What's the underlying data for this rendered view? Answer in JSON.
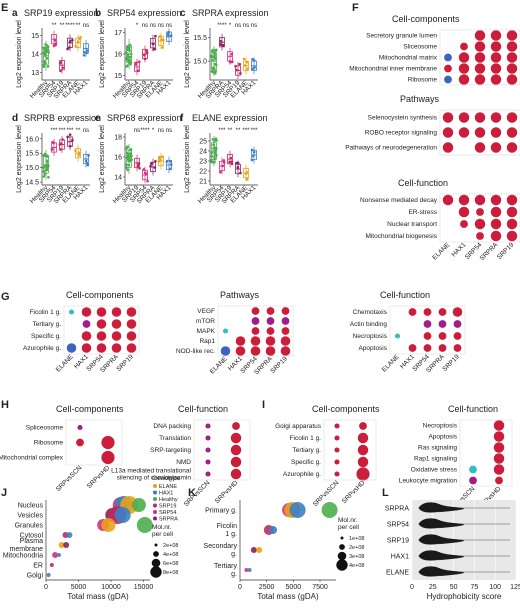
{
  "colors": {
    "Healthy": "#4cae4c",
    "SRP54": "#d62f7a",
    "SRP19": "#c0285f",
    "SRPRA": "#8e1e5f",
    "ELANE": "#e8a317",
    "HAX1": "#3b7fc4",
    "SRPRB": "#b04aa0",
    "dot": "#cc1e3a",
    "dot_alt": "#a31c8c",
    "cyan": "#2fc0c0",
    "blue": "#3b63c4",
    "violin": "#1a1a1a"
  },
  "chart_data": [
    {
      "panel": "E",
      "type": "box",
      "title": "",
      "subpanels": [
        {
          "letter": "a",
          "title": "SRP19 expression",
          "ylabel": "Log2 expression level",
          "ylim": [
            12.6,
            15.4
          ],
          "ticks": [
            "13",
            "14",
            "15"
          ],
          "tick_values": [
            13,
            14,
            15
          ],
          "categories": [
            "Healthy",
            "SRP54",
            "SRP19",
            "SRPRA",
            "ELANE",
            "HAX1"
          ],
          "medians": [
            13.9,
            14.8,
            13.4,
            14.6,
            14.6,
            14.3
          ],
          "sig": [
            "",
            "**",
            "**",
            "****",
            "**",
            "ns"
          ]
        },
        {
          "letter": "b",
          "title": "SRP54 expression",
          "ylabel": "Log2 expression level",
          "ylim": [
            14.8,
            17.2
          ],
          "ticks": [
            "15",
            "16",
            "17"
          ],
          "tick_values": [
            15,
            16,
            17
          ],
          "categories": [
            "Healthy",
            "SRP54",
            "SRP19",
            "SRPRA",
            "ELANE",
            "HAX1"
          ],
          "medians": [
            16.0,
            15.4,
            16.0,
            16.5,
            16.6,
            16.8
          ],
          "sig": [
            "",
            "*",
            "ns",
            "ns",
            "ns",
            "ns"
          ]
        },
        {
          "letter": "c",
          "title": "SRPRA expression",
          "ylabel": "Log2 expression level",
          "ylim": [
            14.6,
            15.7
          ],
          "ticks": [
            "15.0",
            "15.5"
          ],
          "tick_values": [
            15.0,
            15.5
          ],
          "categories": [
            "Healthy",
            "SRPRA",
            "SRP54",
            "SRP19",
            "ELANE",
            "HAX1"
          ],
          "medians": [
            15.0,
            15.4,
            15.1,
            14.8,
            14.9,
            14.9
          ],
          "sig": [
            "",
            "****",
            "*",
            "ns",
            "ns",
            "ns"
          ]
        },
        {
          "letter": "d",
          "title": "SRPRB expression",
          "ylabel": "Log2 expression level",
          "ylim": [
            14.4,
            16.2
          ],
          "ticks": [
            "14.5",
            "15.0",
            "15.5",
            "16.0"
          ],
          "tick_values": [
            14.5,
            15.0,
            15.5,
            16.0
          ],
          "categories": [
            "Healthy",
            "SRP54",
            "SRP19",
            "SRPRA",
            "ELANE",
            "HAX1"
          ],
          "medians": [
            15.1,
            15.7,
            15.8,
            15.9,
            15.5,
            15.3
          ],
          "sig": [
            "",
            "***",
            "***",
            "***",
            "**",
            "ns"
          ]
        },
        {
          "letter": "e",
          "title": "SRP68 expression",
          "ylabel": "Log2 expression level",
          "ylim": [
            13.2,
            18.4
          ],
          "ticks": [
            "14",
            "16",
            "18"
          ],
          "tick_values": [
            14,
            16,
            18
          ],
          "categories": [
            "Healthy",
            "SRP19",
            "SRP54",
            "SRPRA",
            "ELANE",
            "HAX1"
          ],
          "medians": [
            15.8,
            15.4,
            14.2,
            15.0,
            15.6,
            15.2
          ],
          "sig": [
            "",
            "ns",
            "****",
            "*",
            "ns",
            "ns"
          ]
        },
        {
          "letter": "f",
          "title": "ELANE expression",
          "ylabel": "Log2 expression level",
          "ylim": [
            20.6,
            25.8
          ],
          "ticks": [
            "21",
            "22",
            "23",
            "24",
            "25"
          ],
          "tick_values": [
            21,
            22,
            23,
            24,
            25
          ],
          "categories": [
            "Healthy",
            "SRP54",
            "SRP19",
            "SRPRA",
            "ELANE",
            "HAX1"
          ],
          "medians": [
            24.0,
            22.5,
            23.2,
            22.2,
            21.8,
            23.6
          ],
          "sig": [
            "",
            "***",
            "**",
            "**",
            "***",
            "***"
          ]
        }
      ]
    },
    {
      "panel": "F",
      "type": "dotplot",
      "xlabels": [
        "ELANE",
        "HAX1",
        "SRP54",
        "SRPRA",
        "SRP19"
      ],
      "groups": [
        {
          "title": "Cell-components",
          "rows": [
            "Secretory granule lumen",
            "Sliceosome",
            "Mitochondrial matrix",
            "Mitochondrial inner membrane",
            "Ribosome"
          ],
          "sizes": [
            [
              0,
              0,
              3,
              3,
              3
            ],
            [
              0,
              2,
              3,
              3,
              3
            ],
            [
              2,
              3,
              3,
              3,
              3
            ],
            [
              2,
              3,
              3,
              3,
              3
            ],
            [
              2,
              3,
              3,
              3,
              3
            ]
          ]
        },
        {
          "title": "Pathways",
          "rows": [
            "Selenocystein synthesis",
            "ROBO receptor signaling",
            "Pathways of neurodegeneration"
          ],
          "sizes": [
            [
              3,
              3,
              3,
              3,
              3
            ],
            [
              3,
              3,
              3,
              3,
              3
            ],
            [
              3,
              0,
              3,
              3,
              3
            ]
          ]
        },
        {
          "title": "Cell-function",
          "rows": [
            "Nonsense mediated decay",
            "ER-stress",
            "Nuclear transport",
            "Mitochondrial biogenesis"
          ],
          "sizes": [
            [
              3,
              3,
              3,
              3,
              3
            ],
            [
              0,
              3,
              2,
              3,
              3
            ],
            [
              0,
              2,
              3,
              3,
              3
            ],
            [
              0,
              0,
              2,
              3,
              3
            ]
          ]
        }
      ]
    },
    {
      "panel": "G",
      "type": "dotplot",
      "xlabels": [
        "ELANE",
        "HAX1",
        "SRP54",
        "SRPRA",
        "SRP19"
      ],
      "groups": [
        {
          "title": "Cell-components",
          "rows": [
            "Ficolin 1 g.",
            "Tertiary g.",
            "Specific g.",
            "Azurophile g."
          ],
          "sizes": [
            [
              1,
              3,
              3,
              3,
              3
            ],
            [
              0,
              2,
              3,
              3,
              3
            ],
            [
              0,
              3,
              3,
              3,
              3
            ],
            [
              3,
              3,
              3,
              3,
              3
            ]
          ]
        },
        {
          "title": "Pathways",
          "rows": [
            "VEGF",
            "mTOR",
            "MAPK",
            "Rap1",
            "NOD-like rec."
          ],
          "sizes": [
            [
              0,
              0,
              2,
              2,
              2
            ],
            [
              0,
              0,
              2,
              2,
              2
            ],
            [
              1,
              0,
              2,
              2,
              2
            ],
            [
              0,
              3,
              3,
              3,
              3
            ],
            [
              3,
              3,
              3,
              3,
              3
            ]
          ]
        },
        {
          "title": "Cell-function",
          "rows": [
            "Chemotaxis",
            "Actin binding",
            "Necroptosis",
            "Apoptosis"
          ],
          "sizes": [
            [
              0,
              2,
              2,
              2,
              3
            ],
            [
              0,
              0,
              2,
              2,
              2
            ],
            [
              1,
              0,
              2,
              2,
              2
            ],
            [
              0,
              2,
              2,
              2,
              2
            ]
          ]
        }
      ]
    },
    {
      "panel": "H",
      "type": "dotplot",
      "xlabels": [
        "SRPvsSCN",
        "SRPvsHD"
      ],
      "groups": [
        {
          "title": "Cell-components",
          "rows": [
            "Spliceosome",
            "Ribosome",
            "Mitochondrial complex"
          ],
          "sizes": [
            [
              1,
              0
            ],
            [
              2,
              4
            ],
            [
              0,
              4
            ]
          ]
        },
        {
          "title": "Cell-function",
          "rows": [
            "DNA packing",
            "Translation",
            "SRP-targeting",
            "NMD",
            "L13a mediated translational silencing of ceruloplasmin"
          ],
          "sizes": [
            [
              1,
              2
            ],
            [
              1,
              3
            ],
            [
              1,
              3
            ],
            [
              1,
              3
            ],
            [
              1,
              3
            ]
          ]
        }
      ]
    },
    {
      "panel": "I",
      "type": "dotplot",
      "xlabels": [
        "SRPvsSCN",
        "SRPvsHD"
      ],
      "groups": [
        {
          "title": "Cell-components",
          "rows": [
            "Golgi apparatus",
            "Ficolin 1 g.",
            "Tertiary g.",
            "Specific g.",
            "Azurophile g."
          ],
          "sizes": [
            [
              1,
              2
            ],
            [
              1,
              3
            ],
            [
              1,
              3
            ],
            [
              1,
              3
            ],
            [
              1,
              4
            ]
          ]
        },
        {
          "title": "Cell-function",
          "rows": [
            "Necroptosis",
            "Apoptosis",
            "Ras signaling",
            "Rap1 signaling",
            "Oxidative stress",
            "Leukocyte migration"
          ],
          "sizes": [
            [
              0,
              3
            ],
            [
              0,
              3
            ],
            [
              0,
              3
            ],
            [
              0,
              3
            ],
            [
              2,
              3
            ],
            [
              2,
              2
            ]
          ]
        }
      ]
    },
    {
      "panel": "J",
      "type": "scatter",
      "xlabel": "Total mass (gDA)",
      "xlim": [
        0,
        16000
      ],
      "xticks": [
        "0",
        "5000",
        "10000",
        "15000"
      ],
      "xtick_values": [
        0,
        5000,
        10000,
        15000
      ],
      "categories": [
        "Nucleus",
        "Vesicles",
        "Granules",
        "Cytosol",
        "Plasma membrane",
        "Mitochondria",
        "ER",
        "Golgi"
      ],
      "legend_title": "Genotype",
      "legend": [
        "ELANE",
        "HAX1",
        "Healthy",
        "SRP19",
        "SRP54",
        "SRPRA"
      ],
      "size_legend_title": "Mol.nr. per cell",
      "size_legend": [
        "2e+08",
        "4e+08",
        "6e+08",
        "8e+08"
      ],
      "points": [
        {
          "cat": "Nucleus",
          "x": 11500,
          "s": 8,
          "g": "SRP54"
        },
        {
          "cat": "Nucleus",
          "x": 12000,
          "s": 9,
          "g": "HAX1"
        },
        {
          "cat": "Nucleus",
          "x": 12800,
          "s": 9,
          "g": "ELANE"
        },
        {
          "cat": "Nucleus",
          "x": 14300,
          "s": 7,
          "g": "Healthy"
        },
        {
          "cat": "Vesicles",
          "x": 10200,
          "s": 7,
          "g": "SRPRA"
        },
        {
          "cat": "Vesicles",
          "x": 11000,
          "s": 9,
          "g": "SRP19"
        },
        {
          "cat": "Vesicles",
          "x": 11800,
          "s": 8,
          "g": "HAX1"
        },
        {
          "cat": "Granules",
          "x": 8800,
          "s": 6,
          "g": "SRP54"
        },
        {
          "cat": "Granules",
          "x": 9600,
          "s": 7,
          "g": "ELANE"
        },
        {
          "cat": "Granules",
          "x": 15200,
          "s": 8,
          "g": "Healthy"
        },
        {
          "cat": "Cytosol",
          "x": 3000,
          "s": 3,
          "g": "SRP19"
        },
        {
          "cat": "Cytosol",
          "x": 3600,
          "s": 3,
          "g": "HAX1"
        },
        {
          "cat": "Plasma membrane",
          "x": 2400,
          "s": 3,
          "g": "ELANE"
        },
        {
          "cat": "Plasma membrane",
          "x": 3100,
          "s": 3,
          "g": "SRPRA"
        },
        {
          "cat": "Mitochondria",
          "x": 1400,
          "s": 3,
          "g": "SRP54"
        },
        {
          "cat": "Mitochondria",
          "x": 2000,
          "s": 2,
          "g": "HAX1"
        },
        {
          "cat": "ER",
          "x": 900,
          "s": 2,
          "g": "SRP19"
        },
        {
          "cat": "Golgi",
          "x": 400,
          "s": 2,
          "g": "HAX1"
        }
      ]
    },
    {
      "panel": "K",
      "type": "scatter",
      "xlabel": "Total mass (gDA)",
      "xlim": [
        0,
        9000
      ],
      "xticks": [
        "0",
        "2500",
        "5000",
        "7500"
      ],
      "xtick_values": [
        0,
        2500,
        5000,
        7500
      ],
      "categories": [
        "Primary g.",
        "Ficolin 1 g.",
        "Secondary g.",
        "Tertiary g."
      ],
      "size_legend_title": "Mol.nr. per cell",
      "size_legend": [
        "1e+08",
        "2e+08",
        "3e+08",
        "4e+08"
      ],
      "points": [
        {
          "cat": "Primary g.",
          "x": 4600,
          "s": 7,
          "g": "SRP54"
        },
        {
          "cat": "Primary g.",
          "x": 4900,
          "s": 8,
          "g": "ELANE"
        },
        {
          "cat": "Primary g.",
          "x": 5400,
          "s": 8,
          "g": "HAX1"
        },
        {
          "cat": "Primary g.",
          "x": 8400,
          "s": 8,
          "g": "Healthy"
        },
        {
          "cat": "Ficolin 1 g.",
          "x": 2700,
          "s": 5,
          "g": "SRP19"
        },
        {
          "cat": "Ficolin 1 g.",
          "x": 3100,
          "s": 4,
          "g": "HAX1"
        },
        {
          "cat": "Secondary g.",
          "x": 1300,
          "s": 3,
          "g": "SRPRA"
        },
        {
          "cat": "Secondary g.",
          "x": 1800,
          "s": 3,
          "g": "ELANE"
        },
        {
          "cat": "Tertiary g.",
          "x": 600,
          "s": 2,
          "g": "SRP54"
        },
        {
          "cat": "Tertiary g.",
          "x": 900,
          "s": 2,
          "g": "HAX1"
        }
      ]
    },
    {
      "panel": "L",
      "type": "violin",
      "xlabel": "Hydrophobicity score",
      "xlim": [
        0,
        125
      ],
      "xticks": [
        "0",
        "25",
        "50",
        "75",
        "100",
        "125"
      ],
      "xtick_values": [
        0,
        25,
        50,
        75,
        100,
        125
      ],
      "categories": [
        "SRPRA",
        "SRP54",
        "SRP19",
        "HAX1",
        "ELANE"
      ]
    }
  ]
}
